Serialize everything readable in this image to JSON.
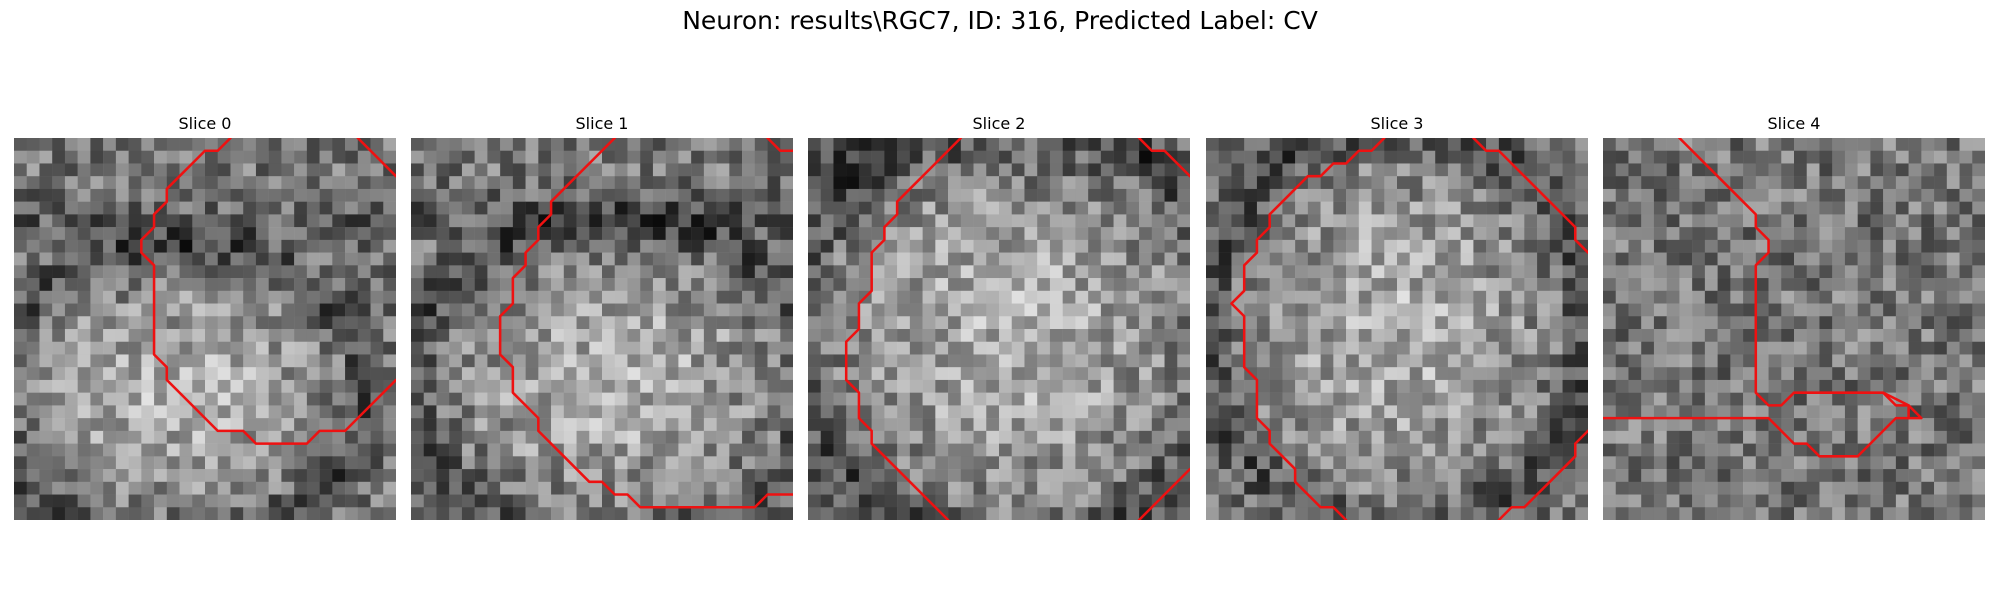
{
  "figure": {
    "title": "Neuron: results\\RGC7, ID: 316, Predicted Label: CV"
  },
  "style": {
    "contour_color": "#ee1111",
    "grid_size": 30
  },
  "panels": [
    {
      "title": "Slice 0",
      "texture": {
        "seed": 11,
        "blob_cx": 13,
        "blob_cy": 20,
        "blob_rx": 13,
        "blob_ry": 10,
        "dark_cy": 7
      },
      "contours": [
        [
          [
            17,
            0
          ],
          [
            16,
            1
          ],
          [
            15,
            1
          ],
          [
            14,
            2
          ],
          [
            13,
            3
          ],
          [
            12,
            4
          ],
          [
            12,
            5
          ],
          [
            11,
            6
          ],
          [
            11,
            7
          ],
          [
            10,
            8
          ],
          [
            10,
            9
          ],
          [
            11,
            10
          ],
          [
            11,
            17
          ],
          [
            12,
            18
          ],
          [
            12,
            19
          ],
          [
            14,
            21
          ],
          [
            16,
            23
          ],
          [
            18,
            23
          ],
          [
            19,
            24
          ],
          [
            23,
            24
          ],
          [
            24,
            23
          ],
          [
            26,
            23
          ],
          [
            27,
            22
          ],
          [
            28,
            21
          ],
          [
            29,
            20
          ],
          [
            30,
            19
          ]
        ],
        [
          [
            27,
            0
          ],
          [
            30,
            3
          ]
        ]
      ]
    },
    {
      "title": "Slice 1",
      "texture": {
        "seed": 23,
        "blob_cx": 16,
        "blob_cy": 19,
        "blob_rx": 14,
        "blob_ry": 11,
        "dark_cy": 6
      },
      "contours": [
        [
          [
            16,
            0
          ],
          [
            14,
            2
          ],
          [
            12,
            4
          ],
          [
            11,
            5
          ],
          [
            11,
            6
          ],
          [
            10,
            7
          ],
          [
            10,
            8
          ],
          [
            9,
            9
          ],
          [
            9,
            10
          ],
          [
            8,
            11
          ],
          [
            8,
            13
          ],
          [
            7,
            14
          ],
          [
            7,
            17
          ],
          [
            8,
            18
          ],
          [
            8,
            20
          ],
          [
            9,
            21
          ],
          [
            10,
            22
          ],
          [
            10,
            23
          ],
          [
            11,
            24
          ],
          [
            12,
            25
          ],
          [
            13,
            26
          ],
          [
            14,
            27
          ],
          [
            15,
            27
          ],
          [
            16,
            28
          ],
          [
            17,
            28
          ],
          [
            18,
            29
          ],
          [
            27,
            29
          ],
          [
            28,
            28
          ],
          [
            30,
            28
          ]
        ],
        [
          [
            28,
            0
          ],
          [
            29,
            1
          ],
          [
            30,
            1
          ]
        ]
      ]
    },
    {
      "title": "Slice 2",
      "texture": {
        "seed": 37,
        "blob_cx": 16,
        "blob_cy": 15,
        "blob_rx": 15,
        "blob_ry": 15,
        "dark_cy": 2
      },
      "contours": [
        [
          [
            12,
            0
          ],
          [
            10,
            2
          ],
          [
            8,
            4
          ],
          [
            7,
            5
          ],
          [
            7,
            6
          ],
          [
            6,
            7
          ],
          [
            6,
            8
          ],
          [
            5,
            9
          ],
          [
            5,
            10
          ],
          [
            5,
            12
          ],
          [
            4,
            13
          ],
          [
            4,
            15
          ],
          [
            3,
            16
          ],
          [
            3,
            19
          ],
          [
            4,
            20
          ],
          [
            4,
            22
          ],
          [
            5,
            23
          ],
          [
            5,
            24
          ],
          [
            6,
            25
          ],
          [
            7,
            26
          ],
          [
            9,
            28
          ],
          [
            11,
            30
          ]
        ],
        [
          [
            26,
            0
          ],
          [
            27,
            1
          ],
          [
            28,
            1
          ],
          [
            29,
            2
          ],
          [
            30,
            3
          ]
        ],
        [
          [
            26,
            30
          ],
          [
            28,
            28
          ],
          [
            30,
            26
          ]
        ]
      ]
    },
    {
      "title": "Slice 3",
      "texture": {
        "seed": 53,
        "blob_cx": 15,
        "blob_cy": 15,
        "blob_rx": 13,
        "blob_ry": 14,
        "dark_cy": -4
      },
      "contours": [
        [
          [
            14,
            0
          ],
          [
            13,
            1
          ],
          [
            12,
            1
          ],
          [
            11,
            2
          ],
          [
            10,
            2
          ],
          [
            9,
            3
          ],
          [
            8,
            3
          ],
          [
            7,
            4
          ],
          [
            6,
            5
          ],
          [
            5,
            6
          ],
          [
            5,
            7
          ],
          [
            4,
            8
          ],
          [
            4,
            9
          ],
          [
            3,
            10
          ],
          [
            3,
            12
          ],
          [
            2,
            13
          ],
          [
            3,
            14
          ],
          [
            3,
            18
          ],
          [
            4,
            19
          ],
          [
            4,
            22
          ],
          [
            5,
            23
          ],
          [
            5,
            24
          ],
          [
            6,
            25
          ],
          [
            7,
            26
          ],
          [
            7,
            27
          ],
          [
            8,
            28
          ],
          [
            9,
            29
          ],
          [
            10,
            29
          ],
          [
            11,
            30
          ]
        ],
        [
          [
            21,
            0
          ],
          [
            22,
            1
          ],
          [
            23,
            1
          ],
          [
            24,
            2
          ],
          [
            25,
            3
          ],
          [
            26,
            4
          ],
          [
            27,
            5
          ],
          [
            28,
            6
          ],
          [
            29,
            7
          ],
          [
            29,
            8
          ],
          [
            30,
            9
          ]
        ],
        [
          [
            23,
            30
          ],
          [
            24,
            29
          ],
          [
            25,
            29
          ],
          [
            26,
            28
          ],
          [
            27,
            27
          ],
          [
            28,
            26
          ],
          [
            29,
            25
          ],
          [
            29,
            24
          ],
          [
            30,
            23
          ]
        ]
      ]
    },
    {
      "title": "Slice 4",
      "texture": {
        "seed": 71,
        "blob_cx": 15,
        "blob_cy": 15,
        "blob_rx": 0,
        "blob_ry": 0,
        "dark_cy": -20
      },
      "contours": [
        [
          [
            6,
            0
          ],
          [
            8,
            2
          ],
          [
            10,
            4
          ],
          [
            11,
            5
          ],
          [
            12,
            6
          ],
          [
            12,
            7
          ],
          [
            13,
            8
          ],
          [
            13,
            9
          ],
          [
            12,
            10
          ],
          [
            12,
            20
          ],
          [
            13,
            21
          ],
          [
            14,
            21
          ],
          [
            15,
            20
          ],
          [
            22,
            20
          ],
          [
            23,
            21
          ],
          [
            24,
            21
          ],
          [
            24,
            22
          ],
          [
            23,
            22
          ],
          [
            22,
            23
          ],
          [
            21,
            24
          ],
          [
            20,
            25
          ],
          [
            17,
            25
          ],
          [
            16,
            24
          ],
          [
            15,
            24
          ],
          [
            14,
            23
          ],
          [
            13,
            22
          ],
          [
            0,
            22
          ]
        ],
        [
          [
            22,
            20
          ],
          [
            24,
            21
          ],
          [
            25,
            22
          ],
          [
            24,
            22
          ]
        ]
      ]
    }
  ]
}
